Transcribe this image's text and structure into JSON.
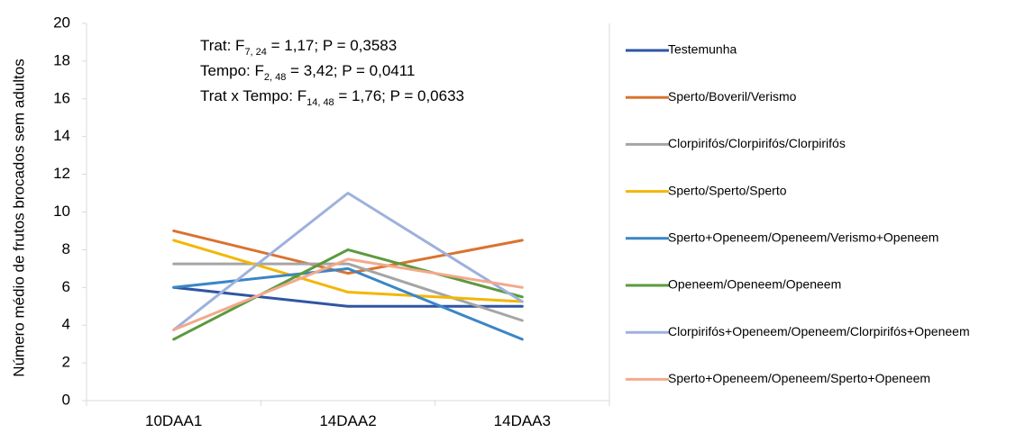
{
  "chart_data": {
    "type": "line",
    "title": "",
    "xlabel": "",
    "ylabel": "Número médio de frutos brocados sem adultos",
    "categories": [
      "10DAA1",
      "14DAA2",
      "14DAA3"
    ],
    "ylim": [
      0,
      20
    ],
    "yticks": [
      "0",
      "2",
      "4",
      "6",
      "8",
      "10",
      "12",
      "14",
      "16",
      "18",
      "20"
    ],
    "grid": false,
    "legend_position": "right",
    "series": [
      {
        "name": "Testemunha",
        "color": "#2F55A4",
        "values": [
          6.0,
          5.0,
          5.0
        ]
      },
      {
        "name": "Sperto/Boveril/Verismo",
        "color": "#D9732F",
        "values": [
          9.0,
          6.75,
          8.5
        ]
      },
      {
        "name": "Clorpirifós/Clorpirifós/Clorpirifós",
        "color": "#A5A5A5",
        "values": [
          7.25,
          7.25,
          4.25
        ]
      },
      {
        "name": "Sperto/Sperto/Sperto",
        "color": "#F2B705",
        "values": [
          8.5,
          5.75,
          5.25
        ]
      },
      {
        "name": "Sperto+Openeem/Openeem/Verismo+Openeem",
        "color": "#3B86C5",
        "values": [
          6.0,
          7.0,
          3.25
        ]
      },
      {
        "name": "Openeem/Openeem/Openeem",
        "color": "#5B9A3E",
        "values": [
          3.25,
          8.0,
          5.5
        ]
      },
      {
        "name": "Clorpirifós+Openeem/Openeem/Clorpirifós+Openeem",
        "color": "#9DB1DE",
        "values": [
          3.75,
          11.0,
          5.25
        ]
      },
      {
        "name": "Sperto+Openeem/Openeem/Sperto+Openeem",
        "color": "#F2A98C",
        "values": [
          3.75,
          7.5,
          6.0
        ]
      }
    ],
    "annotations": [
      {
        "pre": "Trat: F",
        "sub": "7, 24",
        "post": " = 1,17; P = 0,3583"
      },
      {
        "pre": "Tempo: F",
        "sub": "2, 48",
        "post": " = 3,42; P = 0,0411"
      },
      {
        "pre": "Trat x Tempo: F",
        "sub": "14, 48",
        "post": " = 1,76; P = 0,0633"
      }
    ]
  }
}
